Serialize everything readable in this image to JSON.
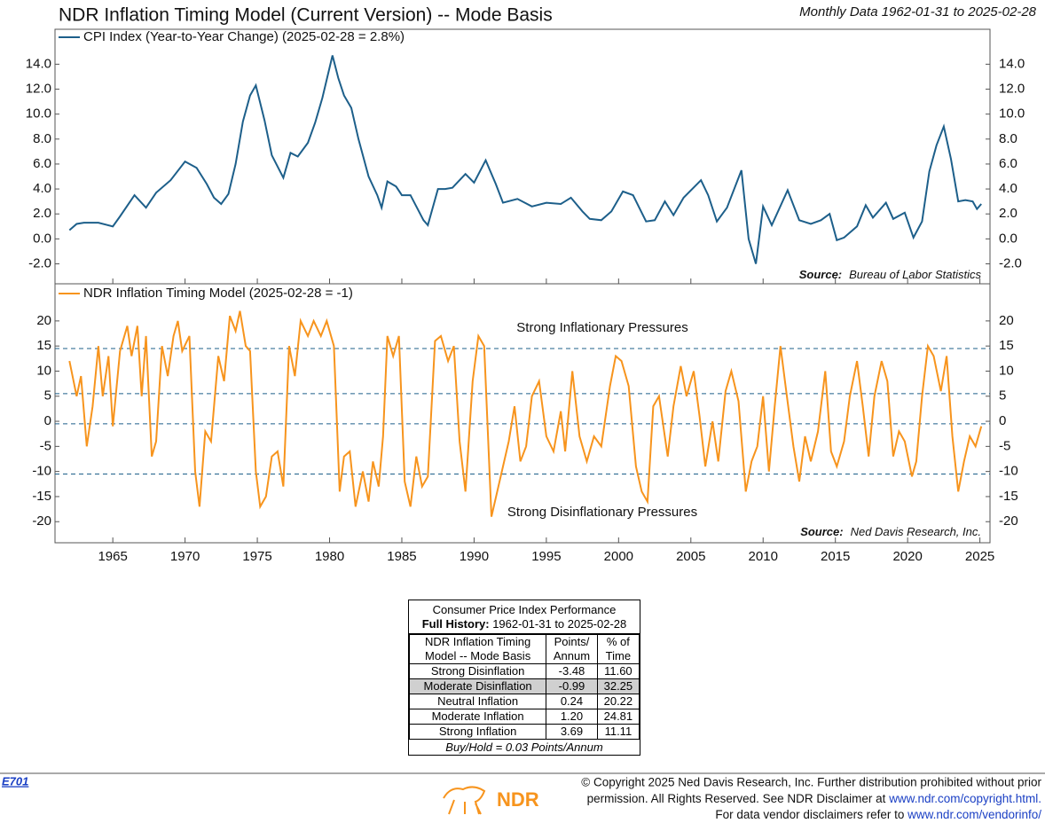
{
  "header": {
    "title": "NDR Inflation Timing Model (Current Version) -- Mode Basis",
    "subtitle": "Monthly Data 1962-01-31 to 2025-02-28"
  },
  "chart_data": [
    {
      "type": "line",
      "legend": "CPI Index (Year-to-Year Change) (2025-02-28 = 2.8%)",
      "source_label": "Source:",
      "source": "Bureau of Labor Statistics",
      "xlim": [
        1961,
        2025.7
      ],
      "ylim": [
        -3.6,
        16.8
      ],
      "yticks": [
        {
          "value": -2,
          "label": "-2.0"
        },
        {
          "value": 0,
          "label": "0.0"
        },
        {
          "value": 2,
          "label": "2.0"
        },
        {
          "value": 4,
          "label": "4.0"
        },
        {
          "value": 6,
          "label": "6.0"
        },
        {
          "value": 8,
          "label": "8.0"
        },
        {
          "value": 10,
          "label": "10.0"
        },
        {
          "value": 12,
          "label": "12.0"
        },
        {
          "value": 14,
          "label": "14.0"
        }
      ],
      "series": [
        {
          "name": "CPI Index (Year-to-Year Change)",
          "color": "#1d5f8a",
          "x": [
            1962.0,
            1962.5,
            1963,
            1964,
            1965,
            1965.5,
            1966.5,
            1967.3,
            1968,
            1969,
            1970,
            1970.8,
            1971.5,
            1972,
            1972.5,
            1973,
            1973.5,
            1974,
            1974.5,
            1974.9,
            1975.5,
            1976,
            1976.8,
            1977.3,
            1977.8,
            1978.5,
            1979,
            1979.5,
            1980.2,
            1980.6,
            1981,
            1981.5,
            1982,
            1982.7,
            1983.3,
            1983.6,
            1984,
            1984.6,
            1985,
            1985.6,
            1986.5,
            1986.8,
            1987.5,
            1988,
            1988.5,
            1989.4,
            1990,
            1990.8,
            1991.5,
            1992,
            1993,
            1994,
            1995,
            1996,
            1996.7,
            1997.5,
            1998,
            1998.8,
            1999.5,
            2000.3,
            2001,
            2001.9,
            2002.5,
            2003.2,
            2003.8,
            2004.5,
            2005.7,
            2006.2,
            2006.8,
            2007.5,
            2008.5,
            2009.0,
            2009.5,
            2010,
            2010.6,
            2011.7,
            2012.5,
            2013.3,
            2014,
            2014.6,
            2015.1,
            2015.6,
            2016.5,
            2017.1,
            2017.6,
            2018.5,
            2019,
            2019.8,
            2020.4,
            2021,
            2021.5,
            2022,
            2022.5,
            2023,
            2023.5,
            2024,
            2024.5,
            2024.8,
            2025.1
          ],
          "values": [
            0.7,
            1.2,
            1.3,
            1.3,
            1.0,
            1.8,
            3.5,
            2.5,
            3.7,
            4.7,
            6.2,
            5.7,
            4.4,
            3.3,
            2.8,
            3.6,
            6.0,
            9.4,
            11.5,
            12.3,
            9.5,
            6.7,
            4.9,
            6.9,
            6.6,
            7.7,
            9.3,
            11.3,
            14.7,
            12.9,
            11.5,
            10.5,
            8.0,
            5.0,
            3.5,
            2.5,
            4.6,
            4.2,
            3.5,
            3.5,
            1.5,
            1.1,
            4.0,
            4.0,
            4.1,
            5.2,
            4.5,
            6.3,
            4.4,
            2.9,
            3.2,
            2.6,
            2.9,
            2.8,
            3.3,
            2.2,
            1.6,
            1.5,
            2.2,
            3.8,
            3.5,
            1.4,
            1.5,
            3.0,
            1.9,
            3.3,
            4.7,
            3.5,
            1.4,
            2.5,
            5.5,
            0.0,
            -2.0,
            2.6,
            1.1,
            3.9,
            1.5,
            1.2,
            1.5,
            2.0,
            -0.1,
            0.1,
            1.0,
            2.7,
            1.7,
            2.9,
            1.6,
            2.1,
            0.1,
            1.4,
            5.4,
            7.5,
            9.0,
            6.4,
            3.0,
            3.1,
            3.0,
            2.4,
            2.8
          ]
        }
      ]
    },
    {
      "type": "line",
      "legend": "NDR Inflation Timing Model (2025-02-28 = -1)",
      "source_label": "Source:",
      "source": "Ned Davis Research, Inc.",
      "annotations": [
        "Strong Inflationary Pressures",
        "Strong Disinflationary Pressures"
      ],
      "xlim": [
        1961,
        2025.7
      ],
      "xticks": [
        1965,
        1970,
        1975,
        1980,
        1985,
        1990,
        1995,
        2000,
        2005,
        2010,
        2015,
        2020,
        2025
      ],
      "ylim": [
        -24.2,
        27.4
      ],
      "yticks": [
        -20,
        -15,
        -10,
        -5,
        0,
        5,
        10,
        15,
        20
      ],
      "thresholds": [
        14.5,
        5.5,
        -0.5,
        -10.5
      ],
      "series": [
        {
          "name": "NDR Inflation Timing Model",
          "color": "#f7941d",
          "x": [
            1962.0,
            1962.5,
            1962.8,
            1963.2,
            1963.6,
            1964,
            1964.3,
            1964.7,
            1965,
            1965.5,
            1966,
            1966.3,
            1966.7,
            1967,
            1967.3,
            1967.7,
            1968,
            1968.4,
            1968.8,
            1969.2,
            1969.5,
            1969.8,
            1970.3,
            1970.7,
            1971,
            1971.4,
            1971.8,
            1972.3,
            1972.7,
            1973.1,
            1973.5,
            1973.8,
            1974.2,
            1974.5,
            1974.9,
            1975.2,
            1975.6,
            1976,
            1976.4,
            1976.8,
            1977.2,
            1977.6,
            1978,
            1978.5,
            1978.9,
            1979.4,
            1979.8,
            1980.3,
            1980.7,
            1981,
            1981.4,
            1981.8,
            1982.3,
            1982.7,
            1983,
            1983.4,
            1983.7,
            1984,
            1984.4,
            1984.8,
            1985.2,
            1985.6,
            1986,
            1986.4,
            1986.8,
            1987.3,
            1987.7,
            1988.2,
            1988.6,
            1989,
            1989.4,
            1989.9,
            1990.3,
            1990.7,
            1991.2,
            1991.6,
            1992,
            1992.4,
            1992.8,
            1993.2,
            1993.6,
            1994,
            1994.5,
            1995,
            1995.5,
            1996,
            1996.3,
            1996.8,
            1997.3,
            1997.8,
            1998.3,
            1998.8,
            1999.4,
            1999.8,
            2000.2,
            2000.7,
            2001.2,
            2001.6,
            2002,
            2002.4,
            2002.8,
            2003.4,
            2003.8,
            2004.3,
            2004.7,
            2005.2,
            2005.6,
            2006,
            2006.5,
            2006.9,
            2007.4,
            2007.8,
            2008.3,
            2008.8,
            2009.2,
            2009.6,
            2010,
            2010.4,
            2010.8,
            2011.2,
            2011.6,
            2012.1,
            2012.5,
            2012.9,
            2013.3,
            2013.8,
            2014.3,
            2014.7,
            2015.1,
            2015.6,
            2016,
            2016.5,
            2016.9,
            2017.3,
            2017.7,
            2018.2,
            2018.6,
            2019,
            2019.4,
            2019.8,
            2020.3,
            2020.6,
            2021,
            2021.4,
            2021.8,
            2022.3,
            2022.7,
            2023.1,
            2023.5,
            2023.9,
            2024.3,
            2024.7,
            2025.1
          ],
          "values": [
            12,
            5,
            9,
            -5,
            3,
            15,
            5,
            13,
            -1,
            14,
            19,
            13,
            19,
            5,
            17,
            -7,
            -4,
            15,
            9,
            17,
            20,
            14,
            17,
            -10,
            -17,
            -2,
            -4,
            13,
            8,
            21,
            18,
            22,
            15,
            14,
            -10,
            -17,
            -15,
            -7,
            -6,
            -13,
            15,
            9,
            20,
            17,
            20,
            17,
            20,
            15,
            -14,
            -7,
            -6,
            -17,
            -10,
            -16,
            -8,
            -13,
            -3,
            17,
            13,
            17,
            -12,
            -17,
            -7,
            -13,
            -11,
            16,
            17,
            12,
            15,
            -4,
            -14,
            8,
            17,
            15,
            -19,
            -14,
            -9,
            -4,
            3,
            -8,
            -5,
            5,
            8,
            -3,
            -6,
            2,
            -6,
            10,
            -3,
            -8,
            -3,
            -5,
            7,
            13,
            12,
            7,
            -9,
            -14,
            -16,
            3,
            5,
            -7,
            3,
            11,
            5,
            10,
            1,
            -9,
            0,
            -8,
            6,
            10,
            4,
            -14,
            -8,
            -5,
            5,
            -10,
            3,
            15,
            6,
            -5,
            -12,
            -3,
            -8,
            -2,
            10,
            -6,
            -9,
            -4,
            5,
            12,
            3,
            -7,
            5,
            12,
            8,
            -7,
            -2,
            -4,
            -11,
            -8,
            5,
            15,
            13,
            6,
            13,
            -3,
            -14,
            -8,
            -3,
            -5,
            -1
          ]
        }
      ]
    }
  ],
  "table": {
    "title": "Consumer Price Index Performance",
    "history_label": "Full History:",
    "history": "1962-01-31 to 2025-02-28",
    "columns": [
      [
        "NDR Inflation Timing",
        "Model -- Mode Basis"
      ],
      [
        "Points/",
        "Annum"
      ],
      [
        "% of",
        "Time"
      ]
    ],
    "rows": [
      [
        "Strong Disinflation",
        "-3.48",
        "11.60"
      ],
      [
        "Moderate Disinflation",
        "-0.99",
        "32.25"
      ],
      [
        "Neutral Inflation",
        "0.24",
        "20.22"
      ],
      [
        "Moderate Inflation",
        "1.20",
        "24.81"
      ],
      [
        "Strong Inflation",
        "3.69",
        "11.11"
      ]
    ],
    "footer": "Buy/Hold = 0.03 Points/Annum"
  },
  "footer": {
    "code": "E701",
    "logo": "NDR",
    "lines": [
      "© Copyright 2025 Ned Davis Research, Inc. Further distribution prohibited without prior",
      "permission. All Rights Reserved. See NDR Disclaimer at ",
      "For data vendor disclaimers refer to "
    ],
    "links": [
      "www.ndr.com/copyright.html.",
      "www.ndr.com/vendorinfo/"
    ]
  }
}
